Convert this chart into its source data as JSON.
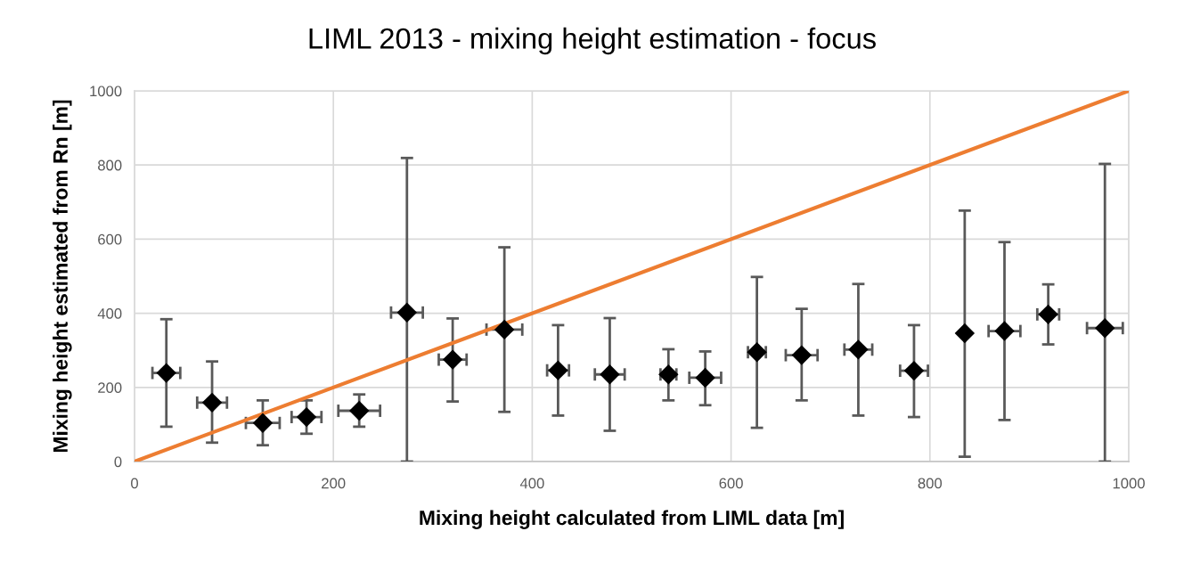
{
  "chart_data": {
    "type": "scatter",
    "title": "LIML 2013 - mixing height estimation - focus",
    "xlabel": "Mixing height calculated from LIML data [m]",
    "ylabel": "Mixing height estimated from Rn [m]",
    "xlim": [
      0,
      1000
    ],
    "ylim": [
      0,
      1000
    ],
    "xticks": [
      0,
      200,
      400,
      600,
      800,
      1000
    ],
    "yticks": [
      0,
      200,
      400,
      600,
      800,
      1000
    ],
    "grid": true,
    "series": [
      {
        "color": "#000000",
        "marker": "diamond",
        "x": [
          32,
          78,
          129,
          173,
          226,
          274,
          320,
          372,
          426,
          478,
          537,
          574,
          626,
          671,
          728,
          784,
          835,
          875,
          919,
          976
        ],
        "values": [
          239,
          159,
          104,
          120,
          137,
          402,
          275,
          356,
          246,
          235,
          235,
          226,
          295,
          287,
          302,
          245,
          346,
          352,
          397,
          360
        ],
        "errors": [
          [
            94,
            384
          ],
          [
            51,
            270
          ],
          [
            44,
            165
          ],
          [
            75,
            165
          ],
          [
            94,
            181
          ],
          [
            0,
            819
          ],
          [
            162,
            386
          ],
          [
            134,
            578
          ],
          [
            124,
            368
          ],
          [
            83,
            387
          ],
          [
            165,
            303
          ],
          [
            152,
            297
          ],
          [
            91,
            498
          ],
          [
            165,
            412
          ],
          [
            124,
            479
          ],
          [
            120,
            368
          ],
          [
            13,
            677
          ],
          [
            112,
            592
          ],
          [
            316,
            478
          ],
          [
            0,
            803
          ]
        ],
        "xerrors": [
          14,
          15,
          17,
          15,
          21,
          16,
          14,
          18,
          11,
          15,
          8,
          16,
          9,
          16,
          14,
          14,
          null,
          16,
          11,
          18
        ]
      },
      {
        "type": "line",
        "color": "#ed7d31",
        "marker": "none",
        "line_style": "solid",
        "x": [
          0,
          1000
        ],
        "values": [
          0,
          1000
        ]
      }
    ]
  }
}
